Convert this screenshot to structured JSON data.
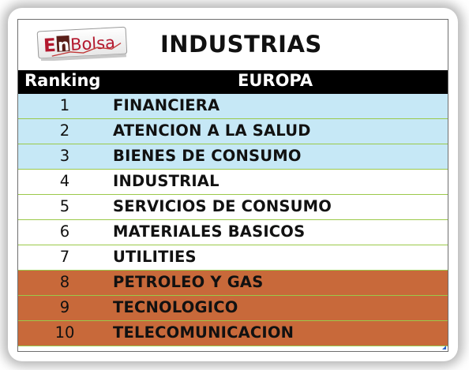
{
  "logo": {
    "text_first": "E",
    "text_n": "n",
    "text_rest": "Bolsa"
  },
  "title": "INDUSTRIAS",
  "columns": {
    "ranking": "Ranking",
    "region": "EUROPA"
  },
  "colors": {
    "top": "#c6e8f6",
    "mid": "#ffffff",
    "bottom": "#c8693a",
    "border": "#9bc94a"
  },
  "rows": [
    {
      "rank": "1",
      "name": "FINANCIERA",
      "group": "top"
    },
    {
      "rank": "2",
      "name": "ATENCION A LA SALUD",
      "group": "top"
    },
    {
      "rank": "3",
      "name": "BIENES DE CONSUMO",
      "group": "top"
    },
    {
      "rank": "4",
      "name": "INDUSTRIAL",
      "group": "mid"
    },
    {
      "rank": "5",
      "name": "SERVICIOS DE CONSUMO",
      "group": "mid"
    },
    {
      "rank": "6",
      "name": "MATERIALES BASICOS",
      "group": "mid"
    },
    {
      "rank": "7",
      "name": "UTILITIES",
      "group": "mid"
    },
    {
      "rank": "8",
      "name": "PETROLEO Y GAS",
      "group": "bottom"
    },
    {
      "rank": "9",
      "name": "TECNOLOGICO",
      "group": "bottom"
    },
    {
      "rank": "10",
      "name": "TELECOMUNICACION",
      "group": "bottom"
    }
  ]
}
